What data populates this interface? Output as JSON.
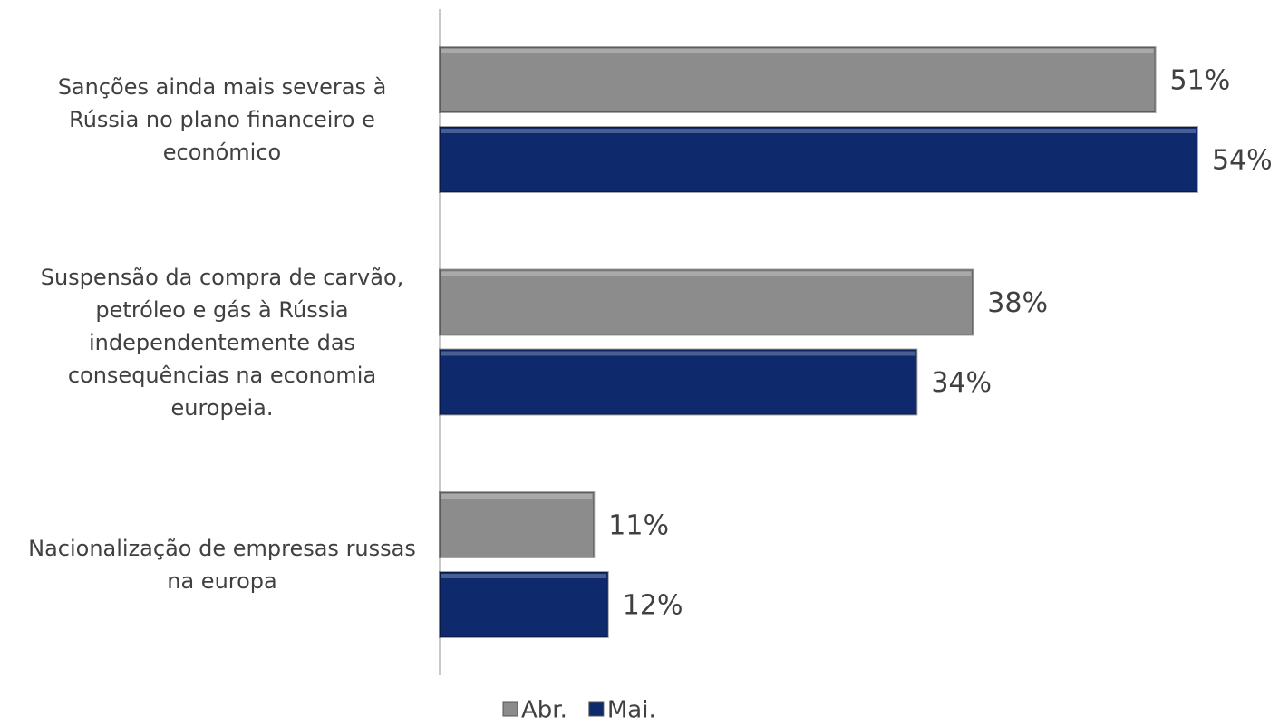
{
  "chart_data": {
    "type": "bar",
    "orientation": "horizontal",
    "categories": [
      "Sanções ainda mais severas à Rússia no plano financeiro e económico",
      "Suspensão da compra de carvão, petróleo e gás à Rússia independentemente das consequências na economia europeia.",
      "Nacionalização de empresas russas na europa"
    ],
    "series": [
      {
        "name": "Abr.",
        "color": "#8c8c8c",
        "values": [
          51,
          38,
          11
        ],
        "value_labels": [
          "51%",
          "38%",
          "11%"
        ]
      },
      {
        "name": "Mai.",
        "color": "#0e2a6d",
        "values": [
          54,
          34,
          12
        ],
        "value_labels": [
          "54%",
          "34%",
          "12%"
        ]
      }
    ],
    "legend": "bottom"
  }
}
